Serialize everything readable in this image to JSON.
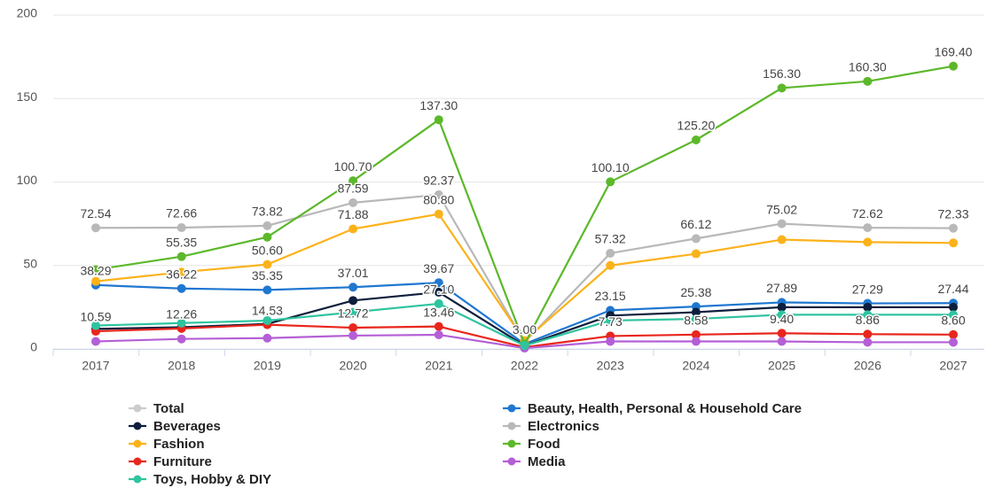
{
  "chart_data": {
    "type": "line",
    "categories": [
      "2017",
      "2018",
      "2019",
      "2020",
      "2021",
      "2022",
      "2023",
      "2024",
      "2025",
      "2026",
      "2027"
    ],
    "ylim": [
      0,
      200
    ],
    "yticks": [
      0,
      50,
      100,
      150,
      200
    ],
    "grid": true,
    "series": [
      {
        "name": "Total",
        "color": "#cccccc",
        "visible": false,
        "values": [
          null,
          null,
          null,
          null,
          null,
          null,
          null,
          null,
          null,
          null,
          null
        ]
      },
      {
        "name": "Beauty, Health, Personal & Household Care",
        "color": "#1f77d0",
        "values": [
          38.29,
          36.22,
          35.35,
          37.01,
          39.67,
          3,
          23.15,
          25.38,
          27.89,
          27.29,
          27.44
        ],
        "value_labels": [
          "38.29",
          "36.22",
          "35.35",
          "37.01",
          "39.67",
          null,
          "23.15",
          "25.38",
          "27.89",
          "27.29",
          "27.44"
        ]
      },
      {
        "name": "Beverages",
        "color": "#0d1f3c",
        "values": [
          12,
          13,
          15,
          29,
          34,
          2,
          20,
          22,
          25,
          25,
          25
        ]
      },
      {
        "name": "Electronics",
        "color": "#b8b8b8",
        "values": [
          72.54,
          72.66,
          73.82,
          87.59,
          92.37,
          4,
          57.32,
          66.12,
          75.02,
          72.62,
          72.33
        ],
        "value_labels": [
          "72.54",
          "72.66",
          "73.82",
          "87.59",
          "92.37",
          null,
          "57.32",
          "66.12",
          "75.02",
          "72.62",
          "72.33"
        ]
      },
      {
        "name": "Fashion",
        "color": "#fbb21a",
        "values": [
          40.5,
          46,
          50.6,
          71.88,
          80.8,
          5,
          50,
          57,
          65.5,
          64,
          63.5
        ],
        "value_labels": [
          null,
          null,
          "50.60",
          "71.88",
          "80.80",
          null,
          null,
          null,
          null,
          null,
          null
        ]
      },
      {
        "name": "Food",
        "color": "#5cb82a",
        "values": [
          47.5,
          55.35,
          67,
          100.7,
          137.3,
          3,
          100.1,
          125.2,
          156.3,
          160.3,
          169.4
        ],
        "value_labels": [
          null,
          "55.35",
          null,
          "100.70",
          "137.30",
          "3.00",
          "100.10",
          "125.20",
          "156.30",
          "160.30",
          "169.40"
        ]
      },
      {
        "name": "Furniture",
        "color": "#e8261c",
        "values": [
          10.59,
          12.26,
          14.53,
          12.72,
          13.46,
          1,
          7.73,
          8.58,
          9.4,
          8.86,
          8.6
        ],
        "value_labels": [
          "10.59",
          "12.26",
          "14.53",
          "12.72",
          "13.46",
          null,
          "7.73",
          "8.58",
          "9.40",
          "8.86",
          "8.60"
        ]
      },
      {
        "name": "Media",
        "color": "#b45fd6",
        "values": [
          4.5,
          6,
          6.5,
          8,
          8.5,
          0.5,
          4.5,
          4.5,
          4.5,
          4,
          4
        ]
      },
      {
        "name": "Toys, Hobby & DIY",
        "color": "#2fc4a0",
        "values": [
          14,
          15.5,
          17,
          22,
          27.1,
          2,
          17,
          18,
          20.5,
          20.5,
          20.5
        ],
        "value_labels": [
          null,
          null,
          null,
          null,
          "27.10",
          null,
          null,
          null,
          null,
          null,
          null
        ]
      }
    ]
  }
}
